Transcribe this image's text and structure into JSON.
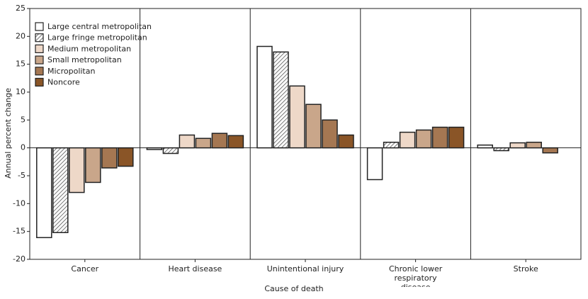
{
  "chart_data": {
    "type": "bar",
    "y_label": "Annual percent change",
    "x_label": "Cause of death",
    "categories": [
      "Cancer",
      "Heart disease",
      "Unintentional injury",
      "Chronic lower respiratory disease",
      "Stroke"
    ],
    "series": [
      {
        "name": "Large central metropolitan",
        "color": "#ffffff",
        "values": [
          -16.1,
          -0.3,
          18.2,
          -5.7,
          0.5
        ]
      },
      {
        "name": "Large fringe metropolitan",
        "color": "#ffffff",
        "hatched": true,
        "values": [
          -15.2,
          -1.0,
          17.2,
          1.0,
          -0.5
        ]
      },
      {
        "name": "Medium metropolitan",
        "color": "#eed8c8",
        "values": [
          -8.0,
          2.3,
          11.1,
          2.8,
          0.9
        ]
      },
      {
        "name": "Small metropolitan",
        "color": "#c9a68a",
        "values": [
          -6.2,
          1.7,
          7.8,
          3.2,
          1.0
        ]
      },
      {
        "name": "Micropolitan",
        "color": "#a57752",
        "values": [
          -3.6,
          2.6,
          5.0,
          3.7,
          -0.9
        ]
      },
      {
        "name": "Noncore",
        "color": "#8a5527",
        "values": [
          -3.3,
          2.2,
          2.3,
          3.7,
          null
        ]
      }
    ],
    "ylim": [
      -20,
      25
    ],
    "yticks": [
      -20,
      -15,
      -10,
      -5,
      0,
      5,
      10,
      15,
      20,
      25
    ],
    "legend": "top-left"
  }
}
